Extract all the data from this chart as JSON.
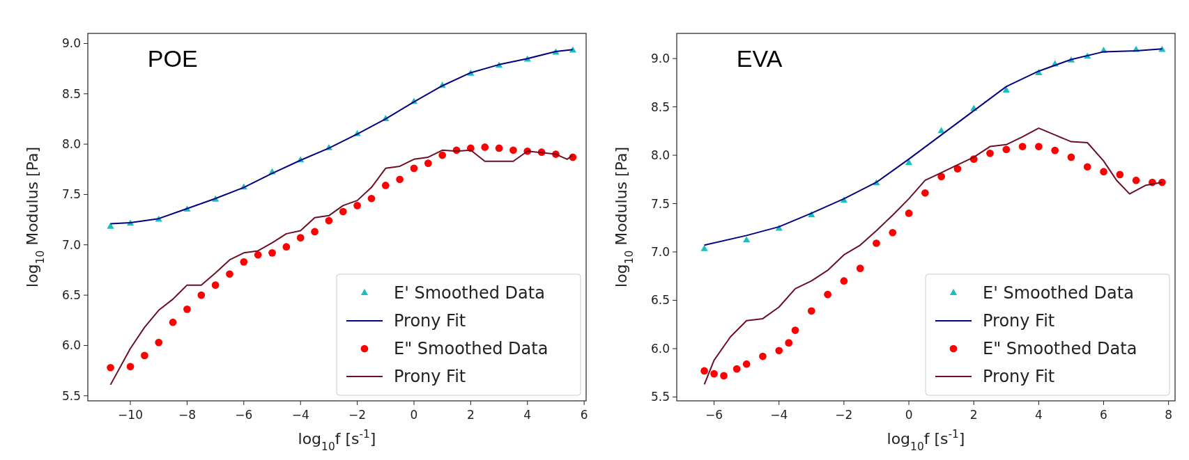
{
  "chart_data": [
    {
      "type": "scatter",
      "title": "POE",
      "xlabel": "log$_{10}$f [s$^{-1}$]",
      "ylabel": "log$_{10}$ Modulus [Pa]",
      "xlim": [
        -11.5,
        6.07
      ],
      "ylim": [
        5.45,
        9.1
      ],
      "xticks": [
        {
          "value": -10,
          "label": "−10"
        },
        {
          "value": -8,
          "label": "−8"
        },
        {
          "value": -6,
          "label": "−6"
        },
        {
          "value": -4,
          "label": "−4"
        },
        {
          "value": -2,
          "label": "−2"
        },
        0,
        2,
        4,
        6
      ],
      "yticks": [
        5.5,
        {
          "value": 6,
          "label": "6.0"
        },
        6.5,
        {
          "value": 7,
          "label": "7.0"
        },
        7.5,
        {
          "value": 8,
          "label": "8.0"
        },
        8.5,
        {
          "value": 9,
          "label": "9.0"
        }
      ],
      "legend": "bottom right",
      "grid": false,
      "series": [
        {
          "name": "E' Smoothed Data",
          "marker": "triangle",
          "color": "#17bfbf",
          "x": [
            -10.7,
            -10,
            -9,
            -8,
            -7,
            -6,
            -5,
            -4,
            -3,
            -2,
            -1,
            0,
            1,
            2,
            3,
            4,
            5,
            5.6
          ],
          "values": [
            7.18,
            7.21,
            7.25,
            7.35,
            7.45,
            7.57,
            7.72,
            7.84,
            7.96,
            8.1,
            8.25,
            8.42,
            8.58,
            8.7,
            8.78,
            8.84,
            8.91,
            8.93
          ]
        },
        {
          "name": "Prony Fit",
          "type": "line",
          "color": "#000080",
          "x": [
            -10.7,
            -10,
            -9,
            -8,
            -7,
            -6,
            -5,
            -4,
            -3,
            -2,
            -1,
            0,
            1,
            2,
            3,
            4,
            5,
            5.6
          ],
          "values": [
            7.21,
            7.22,
            7.26,
            7.36,
            7.46,
            7.57,
            7.71,
            7.84,
            7.96,
            8.1,
            8.25,
            8.42,
            8.58,
            8.71,
            8.79,
            8.85,
            8.92,
            8.94
          ]
        },
        {
          "name": "E\" Smoothed Data",
          "marker": "circle",
          "color": "#ff0000",
          "x": [
            -10.7,
            -10,
            -9.5,
            -9,
            -8.5,
            -8,
            -7.5,
            -7,
            -6.5,
            -6,
            -5.5,
            -5,
            -4.5,
            -4,
            -3.5,
            -3,
            -2.5,
            -2,
            -1.5,
            -1,
            -0.5,
            0,
            0.5,
            1,
            1.5,
            2,
            2.5,
            3,
            3.5,
            4,
            4.5,
            5,
            5.6
          ],
          "values": [
            5.78,
            5.79,
            5.9,
            6.03,
            6.23,
            6.36,
            6.5,
            6.6,
            6.71,
            6.83,
            6.9,
            6.92,
            6.98,
            7.07,
            7.13,
            7.24,
            7.33,
            7.39,
            7.46,
            7.59,
            7.65,
            7.76,
            7.81,
            7.89,
            7.94,
            7.96,
            7.97,
            7.96,
            7.94,
            7.93,
            7.92,
            7.9,
            7.87
          ]
        },
        {
          "name": "Prony Fit",
          "type": "line",
          "color": "#6b0f24",
          "x": [
            -10.7,
            -10,
            -9.5,
            -9,
            -8.5,
            -8,
            -7.5,
            -7,
            -6.5,
            -6,
            -5.5,
            -5,
            -4.5,
            -4,
            -3.5,
            -3,
            -2.5,
            -2,
            -1.5,
            -1,
            -0.5,
            0,
            0.5,
            1,
            1.5,
            2,
            2.5,
            3.5,
            4,
            5,
            5.4,
            5.6
          ],
          "values": [
            5.61,
            5.97,
            6.18,
            6.35,
            6.46,
            6.6,
            6.6,
            6.72,
            6.85,
            6.92,
            6.94,
            7.02,
            7.11,
            7.14,
            7.27,
            7.29,
            7.39,
            7.44,
            7.57,
            7.76,
            7.78,
            7.85,
            7.87,
            7.94,
            7.93,
            7.94,
            7.83,
            7.83,
            7.93,
            7.9,
            7.85,
            7.89
          ]
        }
      ]
    },
    {
      "type": "scatter",
      "title": "EVA",
      "xlabel": "log$_{10}$f [s$^{-1}$]",
      "ylabel": "log$_{10}$ Modulus [Pa]",
      "xlim": [
        -7.15,
        8.2
      ],
      "ylim": [
        5.46,
        9.26
      ],
      "xticks": [
        {
          "value": -6,
          "label": "−6"
        },
        {
          "value": -4,
          "label": "−4"
        },
        {
          "value": -2,
          "label": "−2"
        },
        0,
        2,
        4,
        6,
        8
      ],
      "yticks": [
        5.5,
        {
          "value": 6,
          "label": "6.0"
        },
        6.5,
        {
          "value": 7,
          "label": "7.0"
        },
        7.5,
        {
          "value": 8,
          "label": "8.0"
        },
        8.5,
        {
          "value": 9,
          "label": "9.0"
        }
      ],
      "legend": "bottom right",
      "grid": false,
      "series": [
        {
          "name": "E' Smoothed Data",
          "marker": "triangle",
          "color": "#17bfbf",
          "x": [
            -6.3,
            -5,
            -4,
            -3,
            -2,
            -1,
            0,
            1,
            2,
            3,
            4,
            4.5,
            5,
            5.5,
            6,
            7,
            7.8
          ],
          "values": [
            7.03,
            7.12,
            7.24,
            7.38,
            7.53,
            7.71,
            7.92,
            8.25,
            8.48,
            8.67,
            8.85,
            8.94,
            8.98,
            9.02,
            9.08,
            9.09,
            9.09
          ]
        },
        {
          "name": "Prony Fit",
          "type": "line",
          "color": "#000080",
          "x": [
            -6.3,
            -5,
            -4,
            -3,
            -2,
            -1,
            0,
            1,
            2,
            3,
            4,
            5,
            6,
            7,
            7.8
          ],
          "values": [
            7.07,
            7.17,
            7.26,
            7.4,
            7.55,
            7.72,
            7.96,
            8.21,
            8.46,
            8.71,
            8.87,
            8.99,
            9.07,
            9.08,
            9.1
          ]
        },
        {
          "name": "E\" Smoothed Data",
          "marker": "circle",
          "color": "#ff0000",
          "x": [
            -6.3,
            -6,
            -5.7,
            -5.3,
            -5,
            -4.5,
            -4,
            -3.7,
            -3.5,
            -3,
            -2.5,
            -2,
            -1.5,
            -1,
            -0.5,
            0,
            0.5,
            1,
            1.5,
            2,
            2.5,
            3,
            3.5,
            4,
            4.5,
            5,
            5.5,
            6,
            6.5,
            7,
            7.5,
            7.8
          ],
          "values": [
            5.77,
            5.74,
            5.72,
            5.79,
            5.84,
            5.92,
            5.98,
            6.06,
            6.19,
            6.39,
            6.56,
            6.7,
            6.83,
            7.09,
            7.2,
            7.4,
            7.61,
            7.78,
            7.86,
            7.96,
            8.02,
            8.06,
            8.09,
            8.09,
            8.05,
            7.98,
            7.88,
            7.83,
            7.8,
            7.74,
            7.72,
            7.72
          ]
        },
        {
          "name": "Prony Fit",
          "type": "line",
          "color": "#6b0f24",
          "x": [
            -6.3,
            -6,
            -5.5,
            -5,
            -4.5,
            -4,
            -3.5,
            -3,
            -2.5,
            -2,
            -1.5,
            -1,
            -0.5,
            0,
            0.5,
            1,
            1.5,
            2,
            2.5,
            3,
            3.5,
            4,
            4.5,
            5,
            5.5,
            6,
            6.4,
            6.8,
            7.3,
            7.8
          ],
          "values": [
            5.63,
            5.88,
            6.12,
            6.29,
            6.31,
            6.43,
            6.62,
            6.7,
            6.81,
            6.97,
            7.07,
            7.22,
            7.38,
            7.55,
            7.74,
            7.82,
            7.9,
            7.98,
            8.09,
            8.11,
            8.19,
            8.28,
            8.21,
            8.14,
            8.13,
            7.94,
            7.74,
            7.6,
            7.69,
            7.72
          ]
        }
      ]
    }
  ]
}
